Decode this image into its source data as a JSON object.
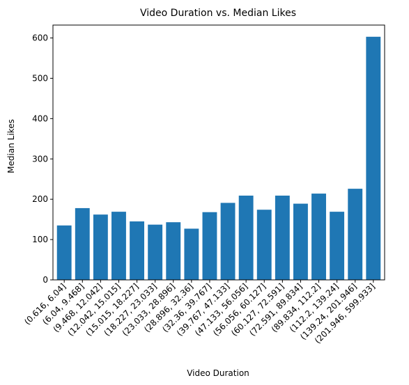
{
  "chart_data": {
    "type": "bar",
    "title": "Video Duration vs. Median Likes",
    "xlabel": "Video Duration",
    "ylabel": "Median Likes",
    "categories": [
      "(0.616, 6.04]",
      "(6.04, 9.468]",
      "(9.468, 12.042]",
      "(12.042, 15.015]",
      "(15.015, 18.227]",
      "(18.227, 23.033]",
      "(23.033, 28.896]",
      "(28.896, 32.36]",
      "(32.36, 39.767]",
      "(39.767, 47.133]",
      "(47.133, 56.056]",
      "(56.056, 60.127]",
      "(60.127, 72.591]",
      "(72.591, 89.834]",
      "(89.834, 112.2]",
      "(112.2, 139.24]",
      "(139.24, 201.946]",
      "(201.946, 599.933]"
    ],
    "values": [
      135,
      178,
      162,
      169,
      145,
      137,
      143,
      127,
      168,
      191,
      209,
      174,
      209,
      189,
      214,
      169,
      226,
      603
    ],
    "ylim": [
      0,
      632
    ],
    "yticks": [
      0,
      100,
      200,
      300,
      400,
      500,
      600
    ],
    "grid": false,
    "bar_color": "#1f77b4"
  }
}
